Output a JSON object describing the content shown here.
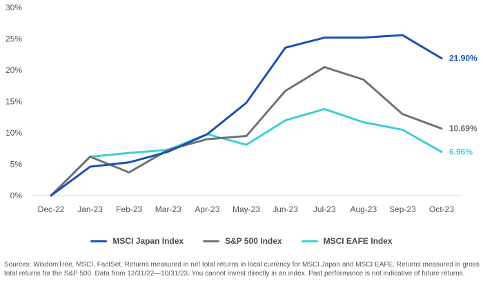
{
  "chart_data": {
    "type": "line",
    "categories": [
      "Dec-22",
      "Jan-23",
      "Feb-23",
      "Mar-23",
      "Apr-23",
      "May-23",
      "Jun-23",
      "Jul-23",
      "Aug-23",
      "Sep-23",
      "Oct-23"
    ],
    "ylim": [
      0,
      30
    ],
    "yticks": [
      "0%",
      "5%",
      "10%",
      "15%",
      "20%",
      "25%",
      "30%"
    ],
    "grid": false,
    "legend_position": "bottom",
    "series": [
      {
        "name": "MSCI Japan Index",
        "color": "#1a4fb5",
        "values": [
          0,
          4.6,
          5.3,
          7.0,
          9.8,
          14.8,
          23.6,
          25.2,
          25.2,
          25.6,
          21.9
        ],
        "end_label": "21.90%"
      },
      {
        "name": "S&P 500 Index",
        "color": "#6b7278",
        "values": [
          0,
          6.2,
          3.7,
          7.3,
          9.0,
          9.5,
          16.7,
          20.5,
          18.5,
          13.0,
          10.69
        ],
        "end_label": "10.69%"
      },
      {
        "name": "MSCI EAFE Index",
        "color": "#3ccfd6",
        "values": [
          0,
          6.2,
          6.8,
          7.3,
          9.8,
          8.1,
          12.0,
          13.8,
          11.7,
          10.5,
          6.96
        ],
        "end_label": "6.96%"
      }
    ]
  },
  "footnote": "Sources: WisdomTree, MSCI, FactSet. Returns measured in net total returns in local currency for MSCI Japan and MSCI EAFE. Returns measured in gross total returns for the S&P 500. Data from 12/31/22—10/31/23. You cannot invest directly in an index. Past performance is not indicative of future returns."
}
